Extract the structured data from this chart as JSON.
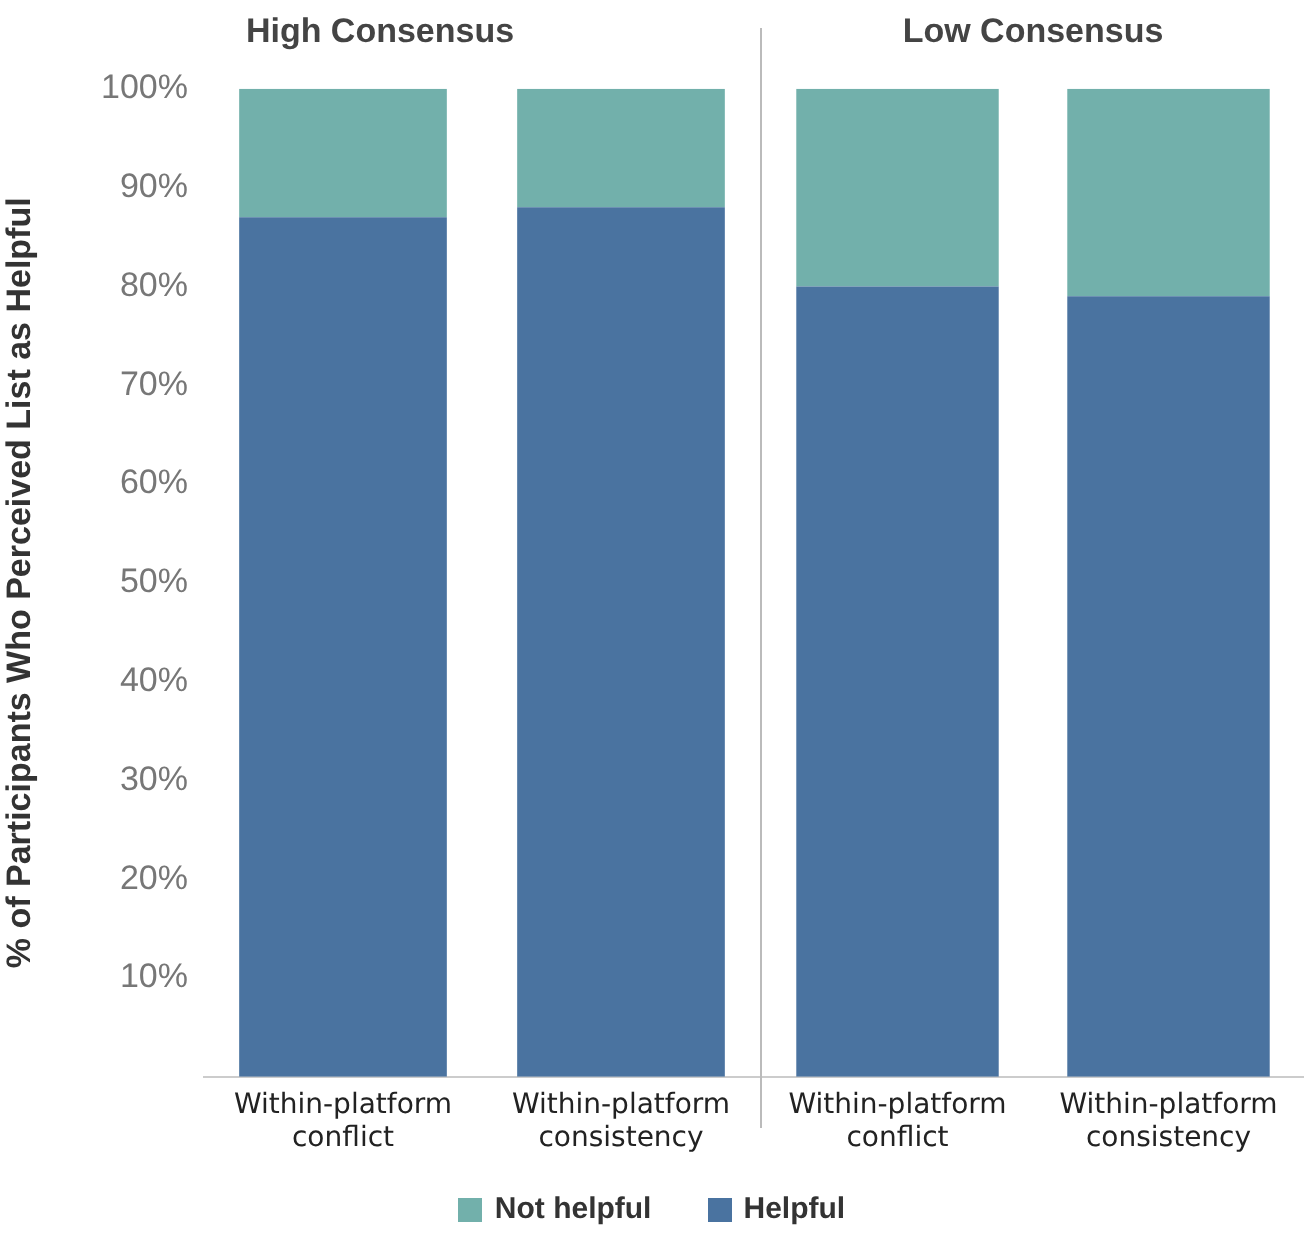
{
  "chart_data": [
    {
      "type": "bar",
      "title": "High Consensus",
      "ylabel": "% of Participants Who Perceived List as Helpful",
      "categories": [
        "Within-platform conflict",
        "Within-platform consistency"
      ],
      "stacked": true,
      "ylim": [
        0,
        100
      ],
      "yticks": [
        {
          "value": 10,
          "label": "10%"
        },
        {
          "value": 20,
          "label": "20%"
        },
        {
          "value": 30,
          "label": "30%"
        },
        {
          "value": 40,
          "label": "40%"
        },
        {
          "value": 50,
          "label": "50%"
        },
        {
          "value": 60,
          "label": "60%"
        },
        {
          "value": 70,
          "label": "70%"
        },
        {
          "value": 80,
          "label": "80%"
        },
        {
          "value": 90,
          "label": "90%"
        },
        {
          "value": 100,
          "label": "100%"
        }
      ],
      "series": [
        {
          "name": "Helpful",
          "color": "#4a73a0",
          "values": [
            87,
            88
          ]
        },
        {
          "name": "Not helpful",
          "color": "#72b0ab",
          "values": [
            13,
            12
          ]
        }
      ],
      "legend": "bottom",
      "grid": false
    },
    {
      "type": "bar",
      "title": "Low Consensus",
      "categories": [
        "Within-platform conflict",
        "Within-platform consistency"
      ],
      "stacked": true,
      "ylim": [
        0,
        100
      ],
      "tick_labels": "x",
      "series": [
        {
          "color": "#4a73a0",
          "values": [
            80,
            79
          ]
        },
        {
          "color": "#72b0ab",
          "values": [
            20,
            21
          ]
        }
      ],
      "grid": false
    }
  ]
}
